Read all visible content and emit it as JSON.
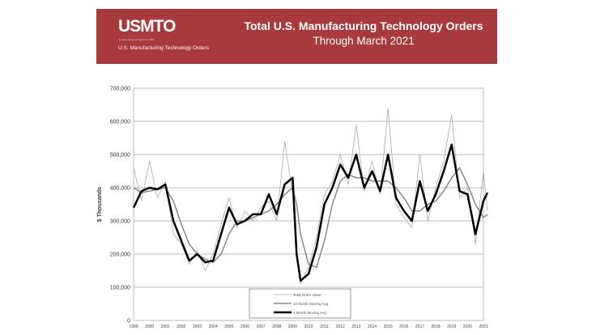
{
  "header": {
    "logo": "USMTO",
    "logo_tagline": "A trade service program for AMT",
    "logo_subtitle": "U.S. Manufacturing Technology Orders",
    "title": "Total U.S. Manufacturing Technology Orders",
    "subtitle": "Through March 2021",
    "background_color": "#a8393c"
  },
  "chart_data": {
    "type": "line",
    "title": "Total U.S. Manufacturing Technology Orders",
    "subtitle": "Through March 2021",
    "xlabel": "",
    "ylabel": "$ Thousands",
    "xlim": [
      1999,
      2021
    ],
    "ylim": [
      0,
      700000
    ],
    "yticks": [
      "0",
      "100,000",
      "200,000",
      "300,000",
      "400,000",
      "500,000",
      "600,000",
      "700,000"
    ],
    "xticks": [
      "1999",
      "2000",
      "2001",
      "2002",
      "2003",
      "2004",
      "2005",
      "2006",
      "2007",
      "2008",
      "2009",
      "2010",
      "2011",
      "2012",
      "2013",
      "2014",
      "2015",
      "2016",
      "2017",
      "2018",
      "2019",
      "2020",
      "2021"
    ],
    "grid": true,
    "legend_placement": "bottom-center",
    "x": [
      1999.0,
      1999.5,
      2000.0,
      2000.5,
      2001.0,
      2001.5,
      2002.0,
      2002.5,
      2003.0,
      2003.5,
      2004.0,
      2004.5,
      2005.0,
      2005.5,
      2006.0,
      2006.5,
      2007.0,
      2007.5,
      2008.0,
      2008.5,
      2009.0,
      2009.25,
      2009.5,
      2010.0,
      2010.5,
      2011.0,
      2011.5,
      2012.0,
      2012.5,
      2013.0,
      2013.5,
      2014.0,
      2014.5,
      2015.0,
      2015.5,
      2016.0,
      2016.5,
      2017.0,
      2017.5,
      2018.0,
      2018.5,
      2019.0,
      2019.5,
      2020.0,
      2020.5,
      2021.0,
      2021.25
    ],
    "series": [
      {
        "name": "Total Order Value",
        "color": "#aaaaaa",
        "values": [
          460000,
          360000,
          480000,
          370000,
          420000,
          260000,
          230000,
          170000,
          210000,
          150000,
          200000,
          290000,
          370000,
          280000,
          330000,
          300000,
          340000,
          360000,
          300000,
          540000,
          380000,
          190000,
          110000,
          160000,
          250000,
          380000,
          420000,
          500000,
          410000,
          590000,
          390000,
          480000,
          380000,
          640000,
          350000,
          310000,
          280000,
          500000,
          300000,
          400000,
          480000,
          620000,
          370000,
          400000,
          230000,
          450000,
          330000
        ]
      },
      {
        "name": "12 Month Moving Avg",
        "color": "#888888",
        "values": [
          400000,
          385000,
          390000,
          395000,
          400000,
          360000,
          290000,
          230000,
          200000,
          185000,
          175000,
          200000,
          260000,
          300000,
          300000,
          310000,
          320000,
          330000,
          350000,
          380000,
          400000,
          350000,
          260000,
          170000,
          160000,
          240000,
          350000,
          420000,
          440000,
          430000,
          430000,
          420000,
          420000,
          420000,
          400000,
          370000,
          330000,
          330000,
          350000,
          360000,
          390000,
          430000,
          460000,
          410000,
          350000,
          310000,
          320000
        ]
      },
      {
        "name": "3 Month Moving Avg",
        "color": "#000000",
        "values": [
          340000,
          390000,
          400000,
          395000,
          410000,
          300000,
          240000,
          180000,
          200000,
          175000,
          180000,
          260000,
          340000,
          290000,
          300000,
          320000,
          320000,
          380000,
          320000,
          410000,
          430000,
          200000,
          120000,
          140000,
          220000,
          350000,
          400000,
          470000,
          430000,
          500000,
          400000,
          450000,
          390000,
          500000,
          370000,
          330000,
          300000,
          420000,
          330000,
          380000,
          450000,
          530000,
          390000,
          380000,
          260000,
          360000,
          385000
        ]
      }
    ]
  }
}
